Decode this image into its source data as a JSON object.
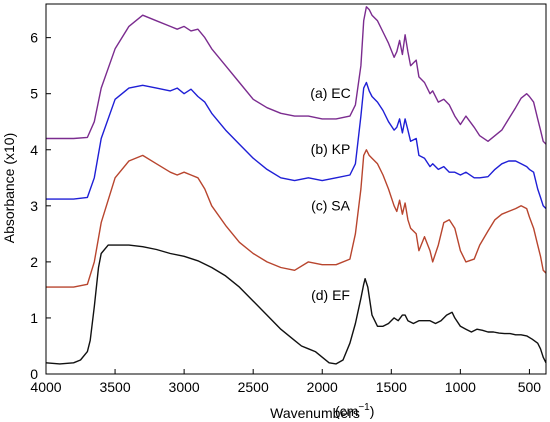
{
  "chart_data": {
    "type": "line",
    "xlabel": "Wavenumbers",
    "xunit_base": "(cm",
    "xunit_sup": "−1",
    "xunit_close": ")",
    "ylabel": "Absorbance (x10)",
    "xlim": [
      4000,
      380
    ],
    "x_reversed": true,
    "ylim": [
      0,
      6.6
    ],
    "grid": false,
    "legend": "none",
    "x_ticks": [
      4000,
      3500,
      3000,
      2500,
      2000,
      1500,
      1000,
      500
    ],
    "x_tick_labels": [
      "4000",
      "3500",
      "3000",
      "2500",
      "2000",
      "1500",
      "1000",
      "500"
    ],
    "y_ticks": [
      0,
      1,
      2,
      3,
      4,
      5,
      6
    ],
    "y_tick_labels": [
      "0",
      "1",
      "2",
      "3",
      "4",
      "5",
      "6"
    ],
    "series": [
      {
        "name": "(a) EC",
        "color": "#7b2c8f",
        "label_at": [
          1940,
          4.92
        ],
        "x": [
          4000,
          3800,
          3700,
          3650,
          3600,
          3500,
          3400,
          3300,
          3200,
          3100,
          3050,
          3000,
          2950,
          2900,
          2850,
          2800,
          2700,
          2600,
          2500,
          2400,
          2300,
          2200,
          2100,
          2000,
          1900,
          1800,
          1760,
          1720,
          1700,
          1680,
          1660,
          1640,
          1600,
          1560,
          1520,
          1480,
          1460,
          1440,
          1420,
          1400,
          1380,
          1360,
          1320,
          1300,
          1260,
          1220,
          1200,
          1160,
          1120,
          1080,
          1040,
          1000,
          960,
          900,
          860,
          800,
          750,
          700,
          650,
          600,
          560,
          520,
          500,
          470,
          440,
          420,
          400,
          380
        ],
        "y": [
          4.2,
          4.2,
          4.22,
          4.5,
          5.1,
          5.8,
          6.2,
          6.4,
          6.3,
          6.2,
          6.15,
          6.2,
          6.12,
          6.15,
          6.0,
          5.8,
          5.5,
          5.2,
          4.9,
          4.75,
          4.65,
          4.6,
          4.6,
          4.55,
          4.55,
          4.6,
          4.8,
          5.5,
          6.3,
          6.55,
          6.5,
          6.4,
          6.3,
          6.1,
          5.9,
          5.65,
          5.75,
          5.95,
          5.7,
          6.05,
          5.75,
          5.5,
          5.6,
          5.3,
          5.2,
          5.0,
          5.05,
          4.85,
          4.9,
          4.8,
          4.6,
          4.45,
          4.6,
          4.4,
          4.25,
          4.15,
          4.25,
          4.35,
          4.55,
          4.75,
          4.92,
          5.0,
          4.95,
          4.85,
          4.55,
          4.35,
          4.15,
          4.1
        ]
      },
      {
        "name": "(b) KP",
        "color": "#1f1fd6",
        "label_at": [
          1940,
          3.92
        ],
        "x": [
          4000,
          3800,
          3700,
          3650,
          3600,
          3500,
          3400,
          3300,
          3200,
          3100,
          3050,
          3000,
          2950,
          2900,
          2850,
          2800,
          2700,
          2600,
          2500,
          2400,
          2300,
          2200,
          2100,
          2000,
          1900,
          1800,
          1760,
          1720,
          1700,
          1680,
          1660,
          1640,
          1600,
          1560,
          1520,
          1480,
          1460,
          1440,
          1420,
          1400,
          1380,
          1360,
          1320,
          1300,
          1260,
          1220,
          1200,
          1160,
          1120,
          1080,
          1040,
          1000,
          960,
          900,
          860,
          800,
          750,
          700,
          650,
          600,
          560,
          520,
          500,
          470,
          440,
          420,
          400,
          380
        ],
        "y": [
          3.12,
          3.12,
          3.15,
          3.5,
          4.2,
          4.9,
          5.1,
          5.15,
          5.1,
          5.05,
          5.1,
          5.0,
          5.08,
          4.95,
          4.85,
          4.65,
          4.35,
          4.1,
          3.85,
          3.65,
          3.5,
          3.45,
          3.5,
          3.45,
          3.5,
          3.55,
          3.75,
          4.6,
          5.1,
          5.2,
          5.05,
          4.95,
          4.85,
          4.7,
          4.5,
          4.35,
          4.4,
          4.55,
          4.3,
          4.55,
          4.35,
          4.15,
          4.2,
          3.9,
          3.85,
          3.7,
          3.75,
          3.65,
          3.7,
          3.6,
          3.6,
          3.55,
          3.6,
          3.5,
          3.5,
          3.52,
          3.65,
          3.75,
          3.8,
          3.8,
          3.75,
          3.7,
          3.65,
          3.6,
          3.3,
          3.15,
          3.0,
          2.95
        ]
      },
      {
        "name": "(c) SA",
        "color": "#b8452e",
        "label_at": [
          1940,
          2.92
        ],
        "x": [
          4000,
          3800,
          3700,
          3650,
          3600,
          3500,
          3400,
          3300,
          3200,
          3100,
          3050,
          3000,
          2950,
          2900,
          2850,
          2800,
          2700,
          2600,
          2500,
          2400,
          2300,
          2200,
          2100,
          2000,
          1900,
          1800,
          1760,
          1720,
          1700,
          1680,
          1660,
          1640,
          1600,
          1560,
          1520,
          1480,
          1460,
          1440,
          1420,
          1400,
          1380,
          1360,
          1320,
          1300,
          1260,
          1220,
          1200,
          1160,
          1120,
          1080,
          1040,
          1000,
          960,
          900,
          860,
          800,
          750,
          700,
          650,
          600,
          560,
          520,
          500,
          470,
          440,
          420,
          400,
          380
        ],
        "y": [
          1.55,
          1.55,
          1.6,
          2.0,
          2.7,
          3.5,
          3.8,
          3.9,
          3.75,
          3.6,
          3.55,
          3.6,
          3.55,
          3.5,
          3.3,
          3.0,
          2.65,
          2.35,
          2.15,
          2.0,
          1.9,
          1.85,
          2.0,
          1.95,
          1.95,
          2.05,
          2.5,
          3.3,
          3.9,
          4.0,
          3.9,
          3.85,
          3.75,
          3.55,
          3.3,
          3.0,
          2.9,
          3.1,
          2.85,
          3.05,
          2.75,
          2.6,
          2.5,
          2.2,
          2.45,
          2.2,
          2.0,
          2.3,
          2.7,
          2.75,
          2.6,
          2.2,
          2.0,
          2.05,
          2.3,
          2.55,
          2.75,
          2.85,
          2.9,
          2.95,
          3.0,
          2.95,
          2.8,
          2.6,
          2.3,
          2.1,
          1.85,
          1.8
        ]
      },
      {
        "name": "(d) EF",
        "color": "#111111",
        "label_at": [
          1940,
          1.32
        ],
        "x": [
          4000,
          3900,
          3800,
          3750,
          3700,
          3680,
          3650,
          3620,
          3600,
          3550,
          3500,
          3400,
          3300,
          3200,
          3100,
          3000,
          2900,
          2800,
          2700,
          2600,
          2500,
          2400,
          2300,
          2200,
          2150,
          2100,
          2050,
          2000,
          1950,
          1900,
          1850,
          1800,
          1760,
          1720,
          1700,
          1690,
          1670,
          1640,
          1600,
          1560,
          1520,
          1480,
          1450,
          1420,
          1400,
          1380,
          1340,
          1300,
          1260,
          1220,
          1180,
          1140,
          1100,
          1060,
          1040,
          1000,
          960,
          920,
          880,
          840,
          800,
          760,
          720,
          680,
          640,
          600,
          560,
          520,
          480,
          440,
          420,
          400,
          380
        ],
        "y": [
          0.2,
          0.18,
          0.2,
          0.25,
          0.4,
          0.6,
          1.2,
          1.9,
          2.15,
          2.3,
          2.3,
          2.3,
          2.27,
          2.22,
          2.15,
          2.1,
          2.02,
          1.9,
          1.75,
          1.55,
          1.3,
          1.05,
          0.8,
          0.6,
          0.5,
          0.45,
          0.4,
          0.3,
          0.2,
          0.18,
          0.25,
          0.55,
          0.9,
          1.35,
          1.6,
          1.7,
          1.55,
          1.05,
          0.85,
          0.85,
          0.9,
          1.0,
          0.95,
          1.05,
          1.05,
          0.95,
          0.9,
          0.95,
          0.95,
          0.95,
          0.9,
          0.95,
          1.05,
          1.1,
          1.0,
          0.85,
          0.8,
          0.75,
          0.8,
          0.78,
          0.75,
          0.75,
          0.73,
          0.72,
          0.72,
          0.7,
          0.7,
          0.68,
          0.62,
          0.55,
          0.45,
          0.3,
          0.2
        ]
      }
    ]
  }
}
